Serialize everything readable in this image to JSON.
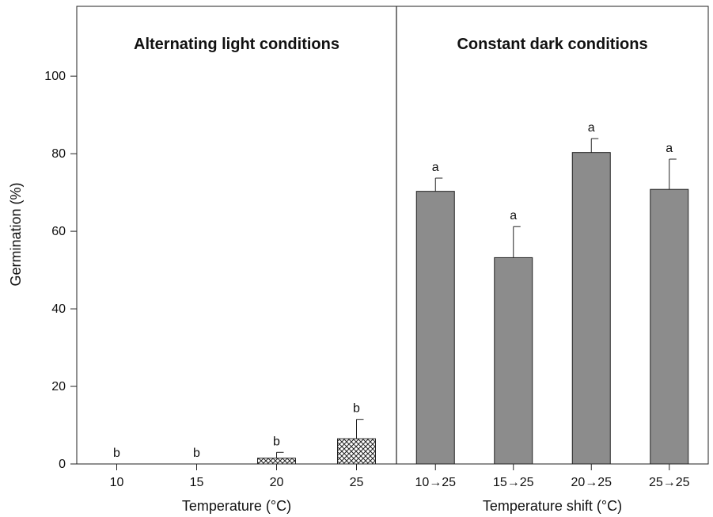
{
  "chart_data": {
    "type": "bar",
    "ylabel": "Germination (%)",
    "ylim": [
      0,
      118
    ],
    "yticks": [
      0,
      20,
      40,
      60,
      80,
      100
    ],
    "grid": false,
    "bar_colors": {
      "hatched": "#ffffff",
      "hatch_line": "#222222",
      "solid": "#8c8c8c"
    },
    "panels": [
      {
        "title": "Alternating light conditions",
        "xlabel": "Temperature (°C)",
        "categories": [
          "10",
          "15",
          "20",
          "25"
        ],
        "values": [
          0,
          0,
          1.5,
          6.5
        ],
        "errors": [
          0,
          0,
          1.5,
          5
        ],
        "labels": [
          "b",
          "b",
          "b",
          "b"
        ],
        "fill": "hatched"
      },
      {
        "title": "Constant dark conditions",
        "xlabel": "Temperature shift (°C)",
        "categories": [
          "10→25",
          "15→25",
          "20→25",
          "25→25"
        ],
        "values": [
          70.3,
          53.2,
          80.3,
          70.8
        ],
        "errors": [
          3.4,
          8.0,
          3.6,
          7.8
        ],
        "labels": [
          "a",
          "a",
          "a",
          "a"
        ],
        "fill": "solid"
      }
    ]
  }
}
